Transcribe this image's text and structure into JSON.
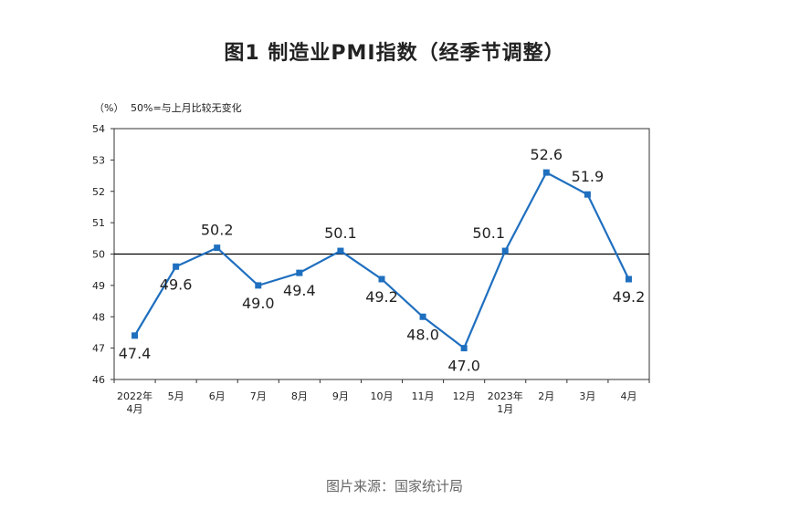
{
  "chart_data": {
    "type": "line",
    "title": "图1  制造业PMI指数（经季节调整）",
    "y_unit": "（%）",
    "note": "50%=与上月比较无变化",
    "categories": [
      [
        "2022年",
        "4月"
      ],
      [
        "5月"
      ],
      [
        "6月"
      ],
      [
        "7月"
      ],
      [
        "8月"
      ],
      [
        "9月"
      ],
      [
        "10月"
      ],
      [
        "11月"
      ],
      [
        "12月"
      ],
      [
        "2023年",
        "1月"
      ],
      [
        "2月"
      ],
      [
        "3月"
      ],
      [
        "4月"
      ]
    ],
    "series": [
      {
        "values": [
          47.4,
          49.6,
          50.2,
          49.0,
          49.4,
          50.1,
          49.2,
          48.0,
          47.0,
          50.1,
          52.6,
          51.9,
          49.2
        ],
        "labels": [
          "47.4",
          "49.6",
          "50.2",
          "49.0",
          "49.4",
          "50.1",
          "49.2",
          "48.0",
          "47.0",
          "50.1",
          "52.6",
          "51.9",
          "49.2"
        ]
      }
    ],
    "ylim": [
      46,
      54
    ],
    "yticks": [
      46,
      47,
      48,
      49,
      50,
      51,
      52,
      53,
      54
    ],
    "reference_line": 50,
    "grid": false,
    "line_color": "#1f6fbf",
    "axis_color": "#333333"
  },
  "source": "图片来源：国家统计局"
}
